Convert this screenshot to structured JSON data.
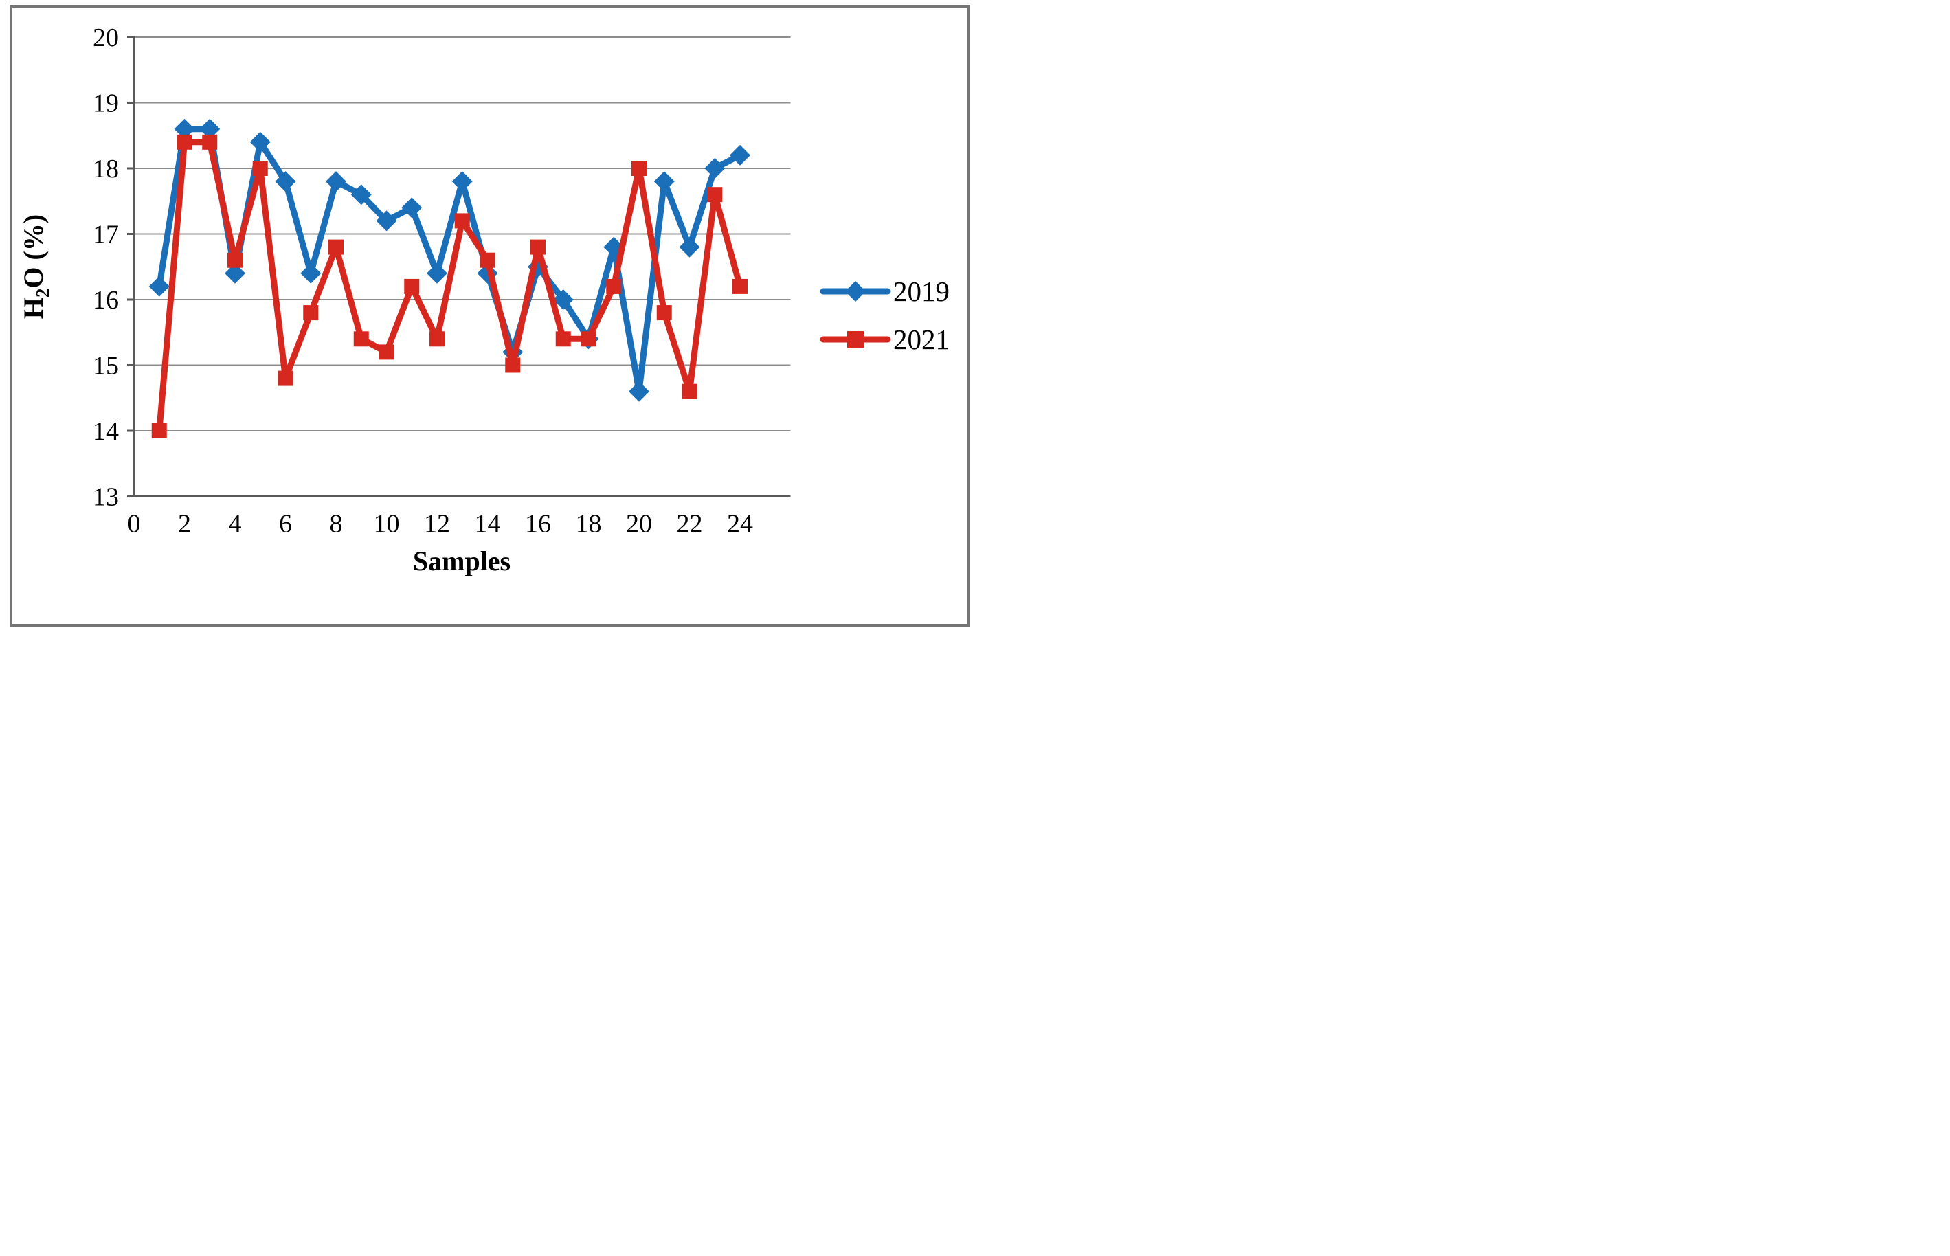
{
  "chart_data": {
    "type": "line",
    "title": "",
    "xlabel": "Samples",
    "ylabel": "H2O (%)",
    "x": [
      1,
      2,
      3,
      4,
      5,
      6,
      7,
      8,
      9,
      10,
      11,
      12,
      13,
      14,
      15,
      16,
      17,
      18,
      19,
      20,
      21,
      22,
      23,
      24
    ],
    "series": [
      {
        "name": "2019",
        "marker": "diamond",
        "color": "#1b6fb8",
        "values": [
          16.2,
          18.6,
          18.6,
          16.4,
          18.4,
          17.8,
          16.4,
          17.8,
          17.6,
          17.2,
          17.4,
          16.4,
          17.8,
          16.4,
          15.2,
          16.5,
          16.0,
          15.4,
          16.8,
          14.6,
          17.8,
          16.8,
          18.0,
          18.2
        ]
      },
      {
        "name": "2021",
        "marker": "square",
        "color": "#d7281f",
        "values": [
          14.0,
          18.4,
          18.4,
          16.6,
          18.0,
          14.8,
          15.8,
          16.8,
          15.4,
          15.2,
          16.2,
          15.4,
          17.2,
          16.6,
          15.0,
          16.8,
          15.4,
          15.4,
          16.2,
          18.0,
          15.8,
          14.6,
          17.6,
          16.2
        ]
      }
    ],
    "xticks": [
      0,
      2,
      4,
      6,
      8,
      10,
      12,
      14,
      16,
      18,
      20,
      22,
      24
    ],
    "yticks": [
      13,
      14,
      15,
      16,
      17,
      18,
      19,
      20
    ],
    "xlim": [
      0,
      26
    ],
    "ylim": [
      13,
      20
    ],
    "grid": true,
    "legend_position": "right"
  },
  "axis": {
    "xlabel": "Samples",
    "ylabel_parts": {
      "main": "H",
      "sub": "2",
      "rest": "O (%)"
    }
  },
  "colors": {
    "series_2019": "#1b6fb8",
    "series_2021": "#d7281f",
    "gridline": "#8c8c8c",
    "axis_line": "#595959",
    "outer_frame": "#757575"
  }
}
